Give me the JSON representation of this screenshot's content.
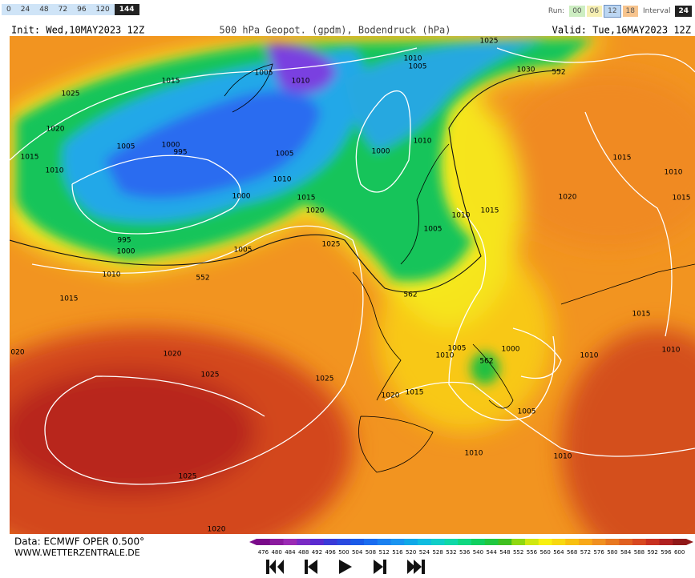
{
  "toolbar": {
    "steps": [
      "0",
      "24",
      "48",
      "72",
      "96",
      "120",
      "144"
    ],
    "selected_step": "144",
    "run_label": "Run:",
    "runs": [
      "00",
      "06",
      "12",
      "18"
    ],
    "interval_label": "Interval",
    "interval": "24"
  },
  "header": {
    "init": "Init: Wed,10MAY2023 12Z",
    "title": "500 hPa Geopot. (gpdm), Bodendruck (hPa)",
    "valid": "Valid: Tue,16MAY2023 12Z"
  },
  "map": {
    "isobar_labels": [
      "1025",
      "1015",
      "1005",
      "1010",
      "1010",
      "1005",
      "1025",
      "1030",
      "552",
      "1020",
      "1015",
      "1010",
      "1005",
      "1000",
      "995",
      "1005",
      "1010",
      "1000",
      "1010",
      "1000",
      "1015",
      "1020",
      "1010",
      "1015",
      "1005",
      "1025",
      "1005",
      "995",
      "1000",
      "1010",
      "552",
      "562",
      "1015",
      "1020",
      "1025",
      "1025",
      "1020",
      "1015",
      "1005",
      "1010",
      "1000",
      "562",
      "1010",
      "1005",
      "1010",
      "1010",
      "1025",
      "1020",
      "1015",
      "1010",
      "1020",
      "1015",
      "1010",
      "1015",
      "020"
    ]
  },
  "footer": {
    "source": "Data: ECMWF OPER 0.500°",
    "site": "WWW.WETTERZENTRALE.DE"
  },
  "colorscale": {
    "levels": [
      476,
      480,
      484,
      488,
      492,
      496,
      500,
      504,
      508,
      512,
      516,
      520,
      524,
      528,
      532,
      536,
      540,
      544,
      548,
      552,
      556,
      560,
      564,
      568,
      572,
      576,
      580,
      584,
      588,
      592,
      596,
      600
    ],
    "colors": [
      "#7a0a8a",
      "#8b1a9e",
      "#9b2ab4",
      "#7a2ac4",
      "#5a2ad0",
      "#3a3ad8",
      "#2a4ae0",
      "#1a5ae8",
      "#1a6cf0",
      "#1a80f0",
      "#1a94f0",
      "#10a8e8",
      "#10bce0",
      "#10cec8",
      "#10d8a8",
      "#10d880",
      "#10d060",
      "#20c840",
      "#40c020",
      "#90d810",
      "#d0e810",
      "#f8f010",
      "#f8d810",
      "#f8c010",
      "#f8a818",
      "#f09020",
      "#e87820",
      "#e06020",
      "#d84820",
      "#c83020",
      "#b02020",
      "#901818"
    ]
  }
}
